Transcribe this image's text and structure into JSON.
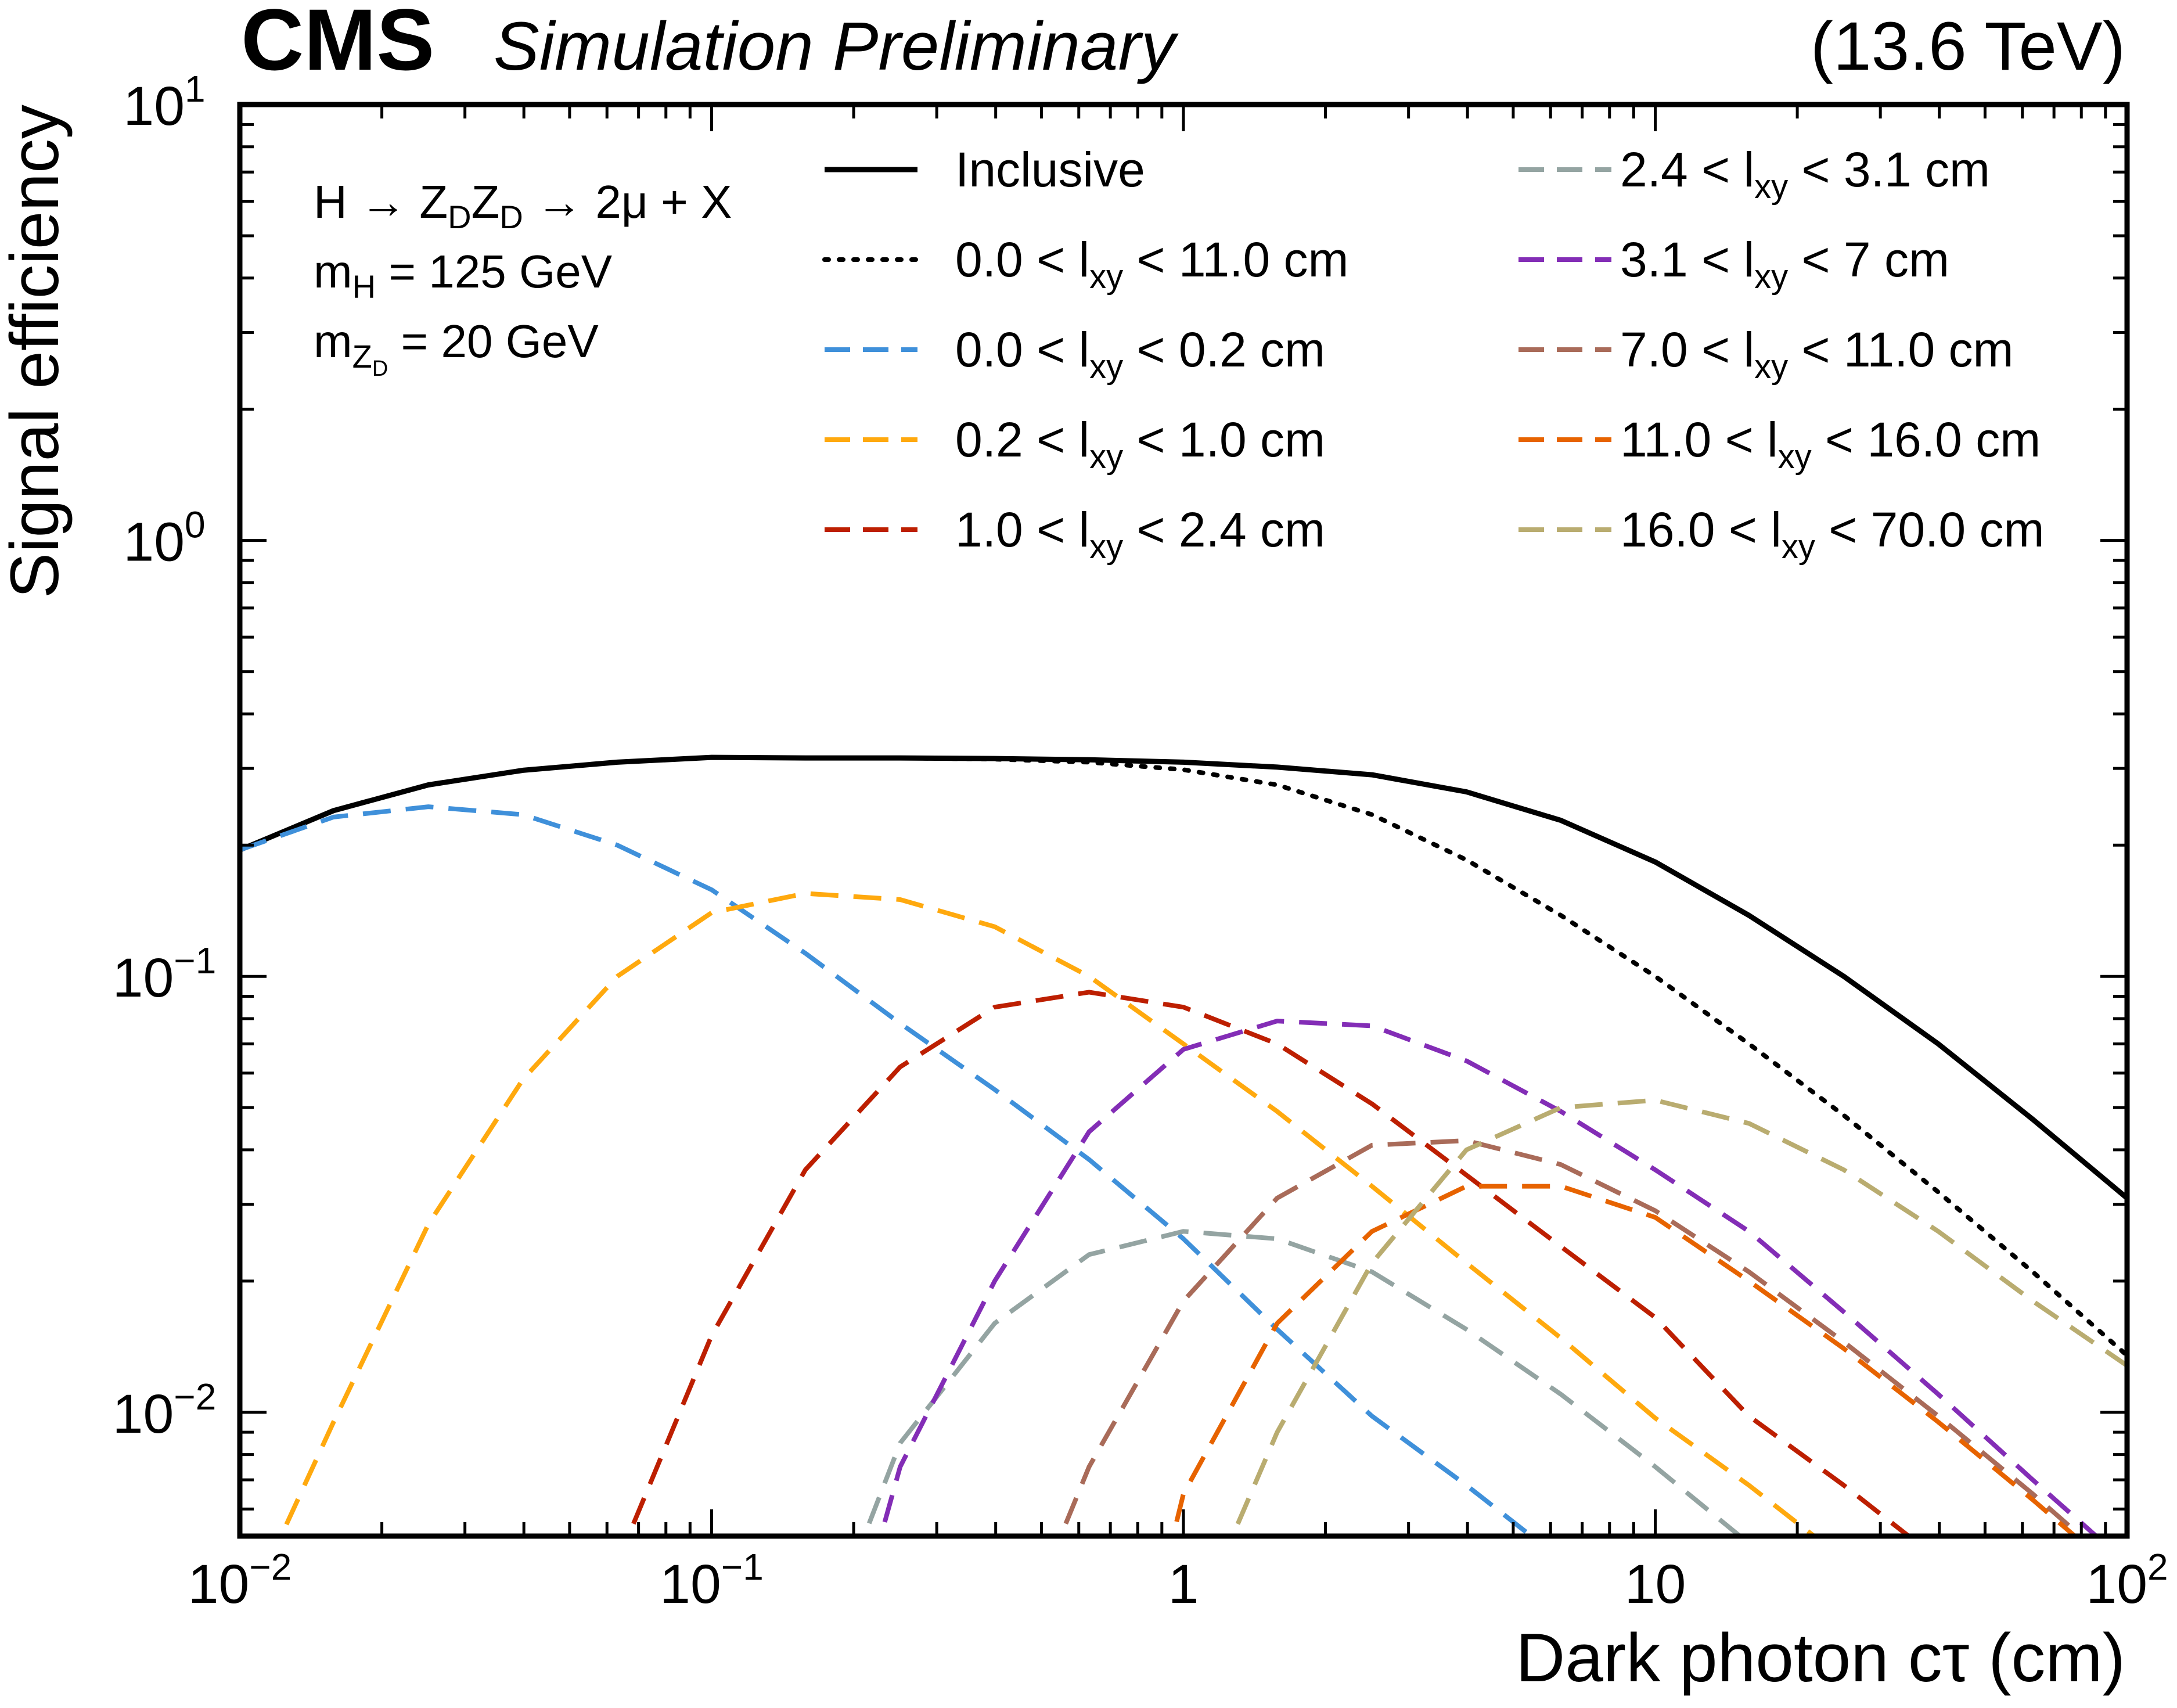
{
  "header": {
    "experiment": "CMS",
    "status": "Simulation Preliminary",
    "energy": "(13.6 TeV)"
  },
  "process_label": {
    "line1": "H → Z",
    "line1_sub1": "D",
    "line1_mid": "Z",
    "line1_sub2": "D",
    "line1_end": " → 2μ + X",
    "line2": "m",
    "line2_sub": "H",
    "line2_end": " = 125 GeV",
    "line3": "m",
    "line3_sub": "Z",
    "line3_subsub": "D",
    "line3_end": " =  20 GeV"
  },
  "chart_data": {
    "type": "line",
    "xlabel": "Dark photon cτ (cm)",
    "ylabel": "Signal efficiency",
    "xscale": "log",
    "yscale": "log",
    "xlim": [
      0.01,
      100
    ],
    "ylim": [
      0.0052,
      10
    ],
    "x_ticks": [
      {
        "value": 0.01,
        "base": "10",
        "exp": "−2"
      },
      {
        "value": 0.1,
        "base": "10",
        "exp": "−1"
      },
      {
        "value": 1,
        "base": "1",
        "exp": ""
      },
      {
        "value": 10,
        "base": "10",
        "exp": ""
      },
      {
        "value": 100,
        "base": "10",
        "exp": "2"
      }
    ],
    "y_ticks": [
      {
        "value": 10,
        "base": "10",
        "exp": "1"
      },
      {
        "value": 1,
        "base": "10",
        "exp": "0"
      },
      {
        "value": 0.1,
        "base": "10",
        "exp": "−1"
      },
      {
        "value": 0.01,
        "base": "10",
        "exp": "−2"
      }
    ],
    "grid": false,
    "legend_placement": "top-right (two columns)",
    "series": [
      {
        "key": "inclusive",
        "name": "Inclusive",
        "legend_prefix": "Inclusive",
        "legend_sub": "",
        "legend_suffix": "",
        "color": "#000000",
        "style": "solid",
        "x": [
          0.01,
          0.0158,
          0.0251,
          0.0398,
          0.0631,
          0.1,
          0.158,
          0.251,
          0.398,
          0.631,
          1.0,
          1.58,
          2.51,
          3.98,
          6.31,
          10,
          15.8,
          25.1,
          39.8,
          63.1,
          100
        ],
        "y": [
          0.195,
          0.24,
          0.275,
          0.297,
          0.31,
          0.318,
          0.317,
          0.317,
          0.316,
          0.314,
          0.31,
          0.302,
          0.29,
          0.265,
          0.228,
          0.183,
          0.138,
          0.1,
          0.07,
          0.047,
          0.031
        ]
      },
      {
        "key": "lxy_0_11",
        "name": "0.0 < lxy < 11.0 cm",
        "legend_prefix": "0.0 < l",
        "legend_sub": "xy",
        "legend_suffix": " < 11.0 cm",
        "color": "#000000",
        "style": "dotted",
        "x": [
          0.01,
          0.0158,
          0.0251,
          0.0398,
          0.0631,
          0.1,
          0.158,
          0.251,
          0.398,
          0.631,
          1.0,
          1.58,
          2.51,
          3.98,
          6.31,
          10,
          15.8,
          25.1,
          39.8,
          63.1,
          100
        ],
        "y": [
          0.195,
          0.24,
          0.275,
          0.297,
          0.31,
          0.318,
          0.317,
          0.317,
          0.315,
          0.31,
          0.298,
          0.275,
          0.235,
          0.185,
          0.138,
          0.1,
          0.07,
          0.048,
          0.032,
          0.021,
          0.0135
        ]
      },
      {
        "key": "lxy_0_02",
        "name": "0.0 < lxy < 0.2 cm",
        "legend_prefix": "0.0 < l",
        "legend_sub": "xy",
        "legend_suffix": " < 0.2 cm",
        "color": "#3f90da",
        "style": "dashed",
        "x": [
          0.01,
          0.0158,
          0.0251,
          0.0398,
          0.0631,
          0.1,
          0.158,
          0.251,
          0.398,
          0.631,
          1.0,
          1.58,
          2.51,
          3.98,
          6.31
        ],
        "y": [
          0.195,
          0.232,
          0.245,
          0.235,
          0.2,
          0.158,
          0.113,
          0.078,
          0.055,
          0.038,
          0.025,
          0.0155,
          0.0098,
          0.0068,
          0.0046
        ]
      },
      {
        "key": "lxy_02_1",
        "name": "0.2 < lxy < 1.0 cm",
        "legend_prefix": "0.2 < l",
        "legend_sub": "xy",
        "legend_suffix": " < 1.0 cm",
        "color": "#ffa90e",
        "style": "dashed",
        "x": [
          0.0115,
          0.0158,
          0.0251,
          0.0398,
          0.0631,
          0.1,
          0.158,
          0.251,
          0.398,
          0.631,
          1.0,
          1.58,
          2.51,
          3.98,
          6.31,
          10,
          15.8,
          25.1
        ],
        "y": [
          0.0045,
          0.0095,
          0.027,
          0.058,
          0.1,
          0.14,
          0.155,
          0.15,
          0.13,
          0.1,
          0.07,
          0.049,
          0.033,
          0.022,
          0.0148,
          0.0097,
          0.0068,
          0.0046
        ]
      },
      {
        "key": "lxy_1_24",
        "name": "1.0 < lxy < 2.4 cm",
        "legend_prefix": "1.0 < l",
        "legend_sub": "xy",
        "legend_suffix": " < 2.4 cm",
        "color": "#bd1f01",
        "style": "dashed",
        "x": [
          0.063,
          0.1,
          0.158,
          0.251,
          0.398,
          0.631,
          1.0,
          1.58,
          2.51,
          3.98,
          6.31,
          10,
          15.8,
          25.1,
          39.8
        ],
        "y": [
          0.0045,
          0.015,
          0.036,
          0.062,
          0.085,
          0.092,
          0.085,
          0.07,
          0.051,
          0.035,
          0.024,
          0.0165,
          0.0098,
          0.0068,
          0.0046
        ]
      },
      {
        "key": "lxy_24_31",
        "name": "2.4 < lxy < 3.1 cm",
        "legend_prefix": "2.4 < l",
        "legend_sub": "xy",
        "legend_suffix": " < 3.1 cm",
        "color": "#94a4a2",
        "style": "dashed",
        "x": [
          0.2,
          0.251,
          0.398,
          0.631,
          1.0,
          1.58,
          2.51,
          3.98,
          6.31,
          10,
          15.8,
          25.1
        ],
        "y": [
          0.0045,
          0.0085,
          0.016,
          0.023,
          0.026,
          0.025,
          0.021,
          0.0155,
          0.011,
          0.0075,
          0.005,
          0.0034
        ]
      },
      {
        "key": "lxy_31_7",
        "name": "3.1 < lxy < 7 cm",
        "legend_prefix": "3.1 < l",
        "legend_sub": "xy",
        "legend_suffix": " < 7 cm",
        "color": "#832db6",
        "style": "dashed",
        "x": [
          0.22,
          0.251,
          0.398,
          0.631,
          1.0,
          1.58,
          2.51,
          3.98,
          6.31,
          10,
          15.8,
          25.1,
          39.8,
          63.1,
          100
        ],
        "y": [
          0.0045,
          0.0075,
          0.02,
          0.044,
          0.068,
          0.079,
          0.077,
          0.064,
          0.049,
          0.036,
          0.026,
          0.017,
          0.011,
          0.007,
          0.0045
        ]
      },
      {
        "key": "lxy_7_11",
        "name": "7.0 < lxy < 11.0 cm",
        "legend_prefix": "7.0 < l",
        "legend_sub": "xy",
        "legend_suffix": " < 11.0 cm",
        "color": "#a96b59",
        "style": "dashed",
        "x": [
          0.52,
          0.631,
          1.0,
          1.58,
          2.51,
          3.98,
          6.31,
          10,
          15.8,
          25.1,
          39.8,
          63.1,
          100
        ],
        "y": [
          0.0045,
          0.0075,
          0.018,
          0.031,
          0.041,
          0.042,
          0.037,
          0.029,
          0.021,
          0.0145,
          0.0098,
          0.0065,
          0.0042
        ]
      },
      {
        "key": "lxy_11_16",
        "name": "11.0 < lxy < 16.0 cm",
        "legend_prefix": "11.0 < l",
        "legend_sub": "xy",
        "legend_suffix": " < 16.0 cm",
        "color": "#e76300",
        "style": "dashed",
        "x": [
          0.92,
          1.0,
          1.58,
          2.51,
          3.98,
          6.31,
          10,
          15.8,
          25.1,
          39.8,
          63.1,
          100
        ],
        "y": [
          0.0045,
          0.0065,
          0.016,
          0.026,
          0.033,
          0.033,
          0.028,
          0.02,
          0.014,
          0.0095,
          0.0063,
          0.0041
        ]
      },
      {
        "key": "lxy_16_70",
        "name": "16.0 < lxy < 70.0 cm",
        "legend_prefix": "16.0 < l",
        "legend_sub": "xy",
        "legend_suffix": " < 70.0 cm",
        "color": "#b9ac70",
        "style": "dashed",
        "x": [
          1.2,
          1.58,
          2.51,
          3.98,
          6.31,
          10,
          15.8,
          25.1,
          39.8,
          63.1,
          100
        ],
        "y": [
          0.0045,
          0.009,
          0.022,
          0.04,
          0.05,
          0.052,
          0.046,
          0.036,
          0.026,
          0.018,
          0.0128
        ]
      }
    ]
  }
}
